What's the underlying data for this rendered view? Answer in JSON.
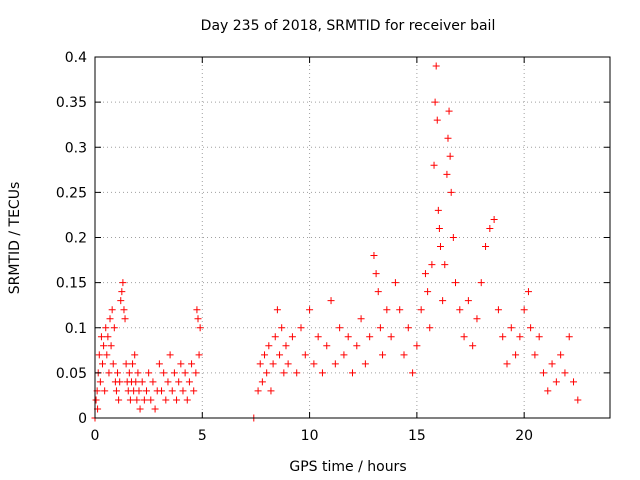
{
  "chart_data": {
    "type": "scatter",
    "title": "Day 235 of 2018, SRMTID for receiver bail",
    "xlabel": "GPS time / hours",
    "ylabel": "SRMTID / TECUs",
    "xlim": [
      0,
      24
    ],
    "ylim": [
      0,
      0.4
    ],
    "xticks": [
      0,
      5,
      10,
      15,
      20
    ],
    "xtick_labels": [
      "0",
      "5",
      "10",
      "15",
      "20"
    ],
    "yticks": [
      0,
      0.05,
      0.1,
      0.15,
      0.2,
      0.25,
      0.3,
      0.35,
      0.4
    ],
    "ytick_labels": [
      "0",
      "0.05",
      "0.1",
      "0.15",
      "0.2",
      "0.25",
      "0.3",
      "0.35",
      "0.4"
    ],
    "grid": true,
    "marker": "+",
    "color": "#ff0000",
    "series": [
      {
        "name": "SRMTID",
        "points": [
          [
            0.0,
            0.0
          ],
          [
            0.05,
            0.02
          ],
          [
            0.1,
            0.03
          ],
          [
            0.12,
            0.01
          ],
          [
            0.15,
            0.05
          ],
          [
            0.2,
            0.07
          ],
          [
            0.25,
            0.04
          ],
          [
            0.3,
            0.09
          ],
          [
            0.35,
            0.06
          ],
          [
            0.4,
            0.08
          ],
          [
            0.45,
            0.03
          ],
          [
            0.5,
            0.1
          ],
          [
            0.55,
            0.07
          ],
          [
            0.6,
            0.09
          ],
          [
            0.65,
            0.05
          ],
          [
            0.7,
            0.11
          ],
          [
            0.75,
            0.08
          ],
          [
            0.8,
            0.12
          ],
          [
            0.85,
            0.06
          ],
          [
            0.9,
            0.1
          ],
          [
            0.95,
            0.04
          ],
          [
            1.0,
            0.03
          ],
          [
            1.05,
            0.05
          ],
          [
            1.1,
            0.02
          ],
          [
            1.15,
            0.04
          ],
          [
            1.2,
            0.13
          ],
          [
            1.25,
            0.14
          ],
          [
            1.3,
            0.15
          ],
          [
            1.35,
            0.12
          ],
          [
            1.4,
            0.11
          ],
          [
            1.45,
            0.06
          ],
          [
            1.5,
            0.04
          ],
          [
            1.55,
            0.03
          ],
          [
            1.6,
            0.05
          ],
          [
            1.65,
            0.02
          ],
          [
            1.7,
            0.04
          ],
          [
            1.75,
            0.06
          ],
          [
            1.8,
            0.03
          ],
          [
            1.85,
            0.07
          ],
          [
            1.9,
            0.04
          ],
          [
            1.95,
            0.02
          ],
          [
            2.0,
            0.05
          ],
          [
            2.05,
            0.03
          ],
          [
            2.1,
            0.01
          ],
          [
            2.2,
            0.04
          ],
          [
            2.3,
            0.02
          ],
          [
            2.4,
            0.03
          ],
          [
            2.5,
            0.05
          ],
          [
            2.6,
            0.02
          ],
          [
            2.7,
            0.04
          ],
          [
            2.8,
            0.01
          ],
          [
            2.9,
            0.03
          ],
          [
            3.0,
            0.06
          ],
          [
            3.1,
            0.03
          ],
          [
            3.2,
            0.05
          ],
          [
            3.3,
            0.02
          ],
          [
            3.4,
            0.04
          ],
          [
            3.5,
            0.07
          ],
          [
            3.6,
            0.03
          ],
          [
            3.7,
            0.05
          ],
          [
            3.8,
            0.02
          ],
          [
            3.9,
            0.04
          ],
          [
            4.0,
            0.06
          ],
          [
            4.1,
            0.03
          ],
          [
            4.2,
            0.05
          ],
          [
            4.3,
            0.02
          ],
          [
            4.4,
            0.04
          ],
          [
            4.5,
            0.06
          ],
          [
            4.6,
            0.03
          ],
          [
            4.7,
            0.05
          ],
          [
            4.75,
            0.12
          ],
          [
            4.8,
            0.11
          ],
          [
            4.85,
            0.07
          ],
          [
            4.9,
            0.1
          ],
          [
            7.4,
            0.0
          ],
          [
            7.6,
            0.03
          ],
          [
            7.7,
            0.06
          ],
          [
            7.8,
            0.04
          ],
          [
            7.9,
            0.07
          ],
          [
            8.0,
            0.05
          ],
          [
            8.1,
            0.08
          ],
          [
            8.2,
            0.03
          ],
          [
            8.3,
            0.06
          ],
          [
            8.4,
            0.09
          ],
          [
            8.5,
            0.12
          ],
          [
            8.6,
            0.07
          ],
          [
            8.7,
            0.1
          ],
          [
            8.8,
            0.05
          ],
          [
            8.9,
            0.08
          ],
          [
            9.0,
            0.06
          ],
          [
            9.2,
            0.09
          ],
          [
            9.4,
            0.05
          ],
          [
            9.6,
            0.1
          ],
          [
            9.8,
            0.07
          ],
          [
            10.0,
            0.12
          ],
          [
            10.2,
            0.06
          ],
          [
            10.4,
            0.09
          ],
          [
            10.6,
            0.05
          ],
          [
            10.8,
            0.08
          ],
          [
            11.0,
            0.13
          ],
          [
            11.2,
            0.06
          ],
          [
            11.4,
            0.1
          ],
          [
            11.6,
            0.07
          ],
          [
            11.8,
            0.09
          ],
          [
            12.0,
            0.05
          ],
          [
            12.2,
            0.08
          ],
          [
            12.4,
            0.11
          ],
          [
            12.6,
            0.06
          ],
          [
            12.8,
            0.09
          ],
          [
            13.0,
            0.18
          ],
          [
            13.1,
            0.16
          ],
          [
            13.2,
            0.14
          ],
          [
            13.3,
            0.1
          ],
          [
            13.4,
            0.07
          ],
          [
            13.6,
            0.12
          ],
          [
            13.8,
            0.09
          ],
          [
            14.0,
            0.15
          ],
          [
            14.2,
            0.12
          ],
          [
            14.4,
            0.07
          ],
          [
            14.6,
            0.1
          ],
          [
            14.8,
            0.05
          ],
          [
            15.0,
            0.08
          ],
          [
            15.2,
            0.12
          ],
          [
            15.4,
            0.16
          ],
          [
            15.5,
            0.14
          ],
          [
            15.6,
            0.1
          ],
          [
            15.7,
            0.17
          ],
          [
            15.8,
            0.28
          ],
          [
            15.85,
            0.35
          ],
          [
            15.9,
            0.39
          ],
          [
            15.95,
            0.33
          ],
          [
            16.0,
            0.23
          ],
          [
            16.05,
            0.21
          ],
          [
            16.1,
            0.19
          ],
          [
            16.2,
            0.13
          ],
          [
            16.3,
            0.17
          ],
          [
            16.4,
            0.27
          ],
          [
            16.45,
            0.31
          ],
          [
            16.5,
            0.34
          ],
          [
            16.55,
            0.29
          ],
          [
            16.6,
            0.25
          ],
          [
            16.7,
            0.2
          ],
          [
            16.8,
            0.15
          ],
          [
            17.0,
            0.12
          ],
          [
            17.2,
            0.09
          ],
          [
            17.4,
            0.13
          ],
          [
            17.6,
            0.08
          ],
          [
            17.8,
            0.11
          ],
          [
            18.0,
            0.15
          ],
          [
            18.2,
            0.19
          ],
          [
            18.4,
            0.21
          ],
          [
            18.6,
            0.22
          ],
          [
            18.8,
            0.12
          ],
          [
            19.0,
            0.09
          ],
          [
            19.2,
            0.06
          ],
          [
            19.4,
            0.1
          ],
          [
            19.6,
            0.07
          ],
          [
            19.8,
            0.09
          ],
          [
            20.0,
            0.12
          ],
          [
            20.2,
            0.14
          ],
          [
            20.3,
            0.1
          ],
          [
            20.5,
            0.07
          ],
          [
            20.7,
            0.09
          ],
          [
            20.9,
            0.05
          ],
          [
            21.1,
            0.03
          ],
          [
            21.3,
            0.06
          ],
          [
            21.5,
            0.04
          ],
          [
            21.7,
            0.07
          ],
          [
            21.9,
            0.05
          ],
          [
            22.1,
            0.09
          ],
          [
            22.3,
            0.04
          ],
          [
            22.5,
            0.02
          ]
        ]
      }
    ]
  }
}
